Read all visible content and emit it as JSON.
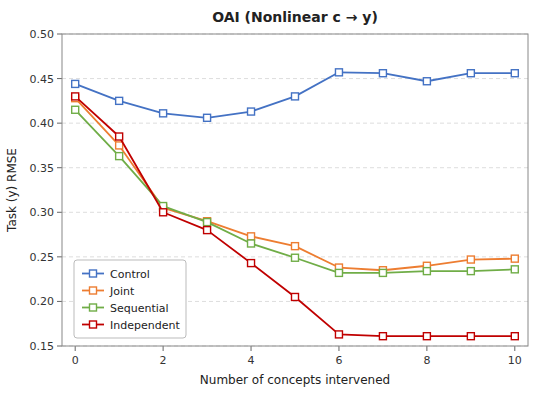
{
  "chart_data": {
    "type": "line",
    "title": "OAI (Nonlinear c → y)",
    "x_label": "Number of concepts intervened",
    "y_label": "Task (y) RMSE",
    "x": [
      0,
      1,
      2,
      3,
      4,
      5,
      6,
      7,
      8,
      9,
      10
    ],
    "xlim": [
      -0.3,
      10.3
    ],
    "ylim": [
      0.15,
      0.5
    ],
    "xticks": [
      0,
      2,
      4,
      6,
      8,
      10
    ],
    "yticks": [
      0.15,
      {
        "value": 0.2,
        "label": "0.20"
      },
      0.25,
      {
        "value": 0.3,
        "label": "0.30"
      },
      0.35,
      {
        "value": 0.4,
        "label": "0.40"
      },
      0.45,
      {
        "value": 0.5,
        "label": "0.50"
      }
    ],
    "grid": true,
    "legend": "lower left",
    "series": [
      {
        "name": "Control",
        "color": "#4472C4",
        "marker": "square",
        "values": [
          0.444,
          0.425,
          0.411,
          0.406,
          0.413,
          0.43,
          0.457,
          0.456,
          0.447,
          0.456,
          0.456
        ]
      },
      {
        "name": "Joint",
        "color": "#ED7D31",
        "marker": "square",
        "values": [
          0.428,
          0.375,
          0.305,
          0.29,
          0.273,
          0.262,
          0.238,
          0.235,
          0.24,
          0.247,
          0.248
        ]
      },
      {
        "name": "Sequential",
        "color": "#70AD47",
        "marker": "square",
        "values": [
          0.415,
          0.363,
          0.307,
          0.289,
          0.265,
          0.249,
          0.232,
          0.232,
          0.234,
          0.234,
          0.236
        ]
      },
      {
        "name": "Independent",
        "color": "#C00000",
        "marker": "square",
        "values": [
          0.43,
          0.385,
          0.3,
          0.28,
          0.243,
          0.205,
          0.163,
          0.161,
          0.161,
          0.161,
          0.161
        ]
      }
    ]
  }
}
